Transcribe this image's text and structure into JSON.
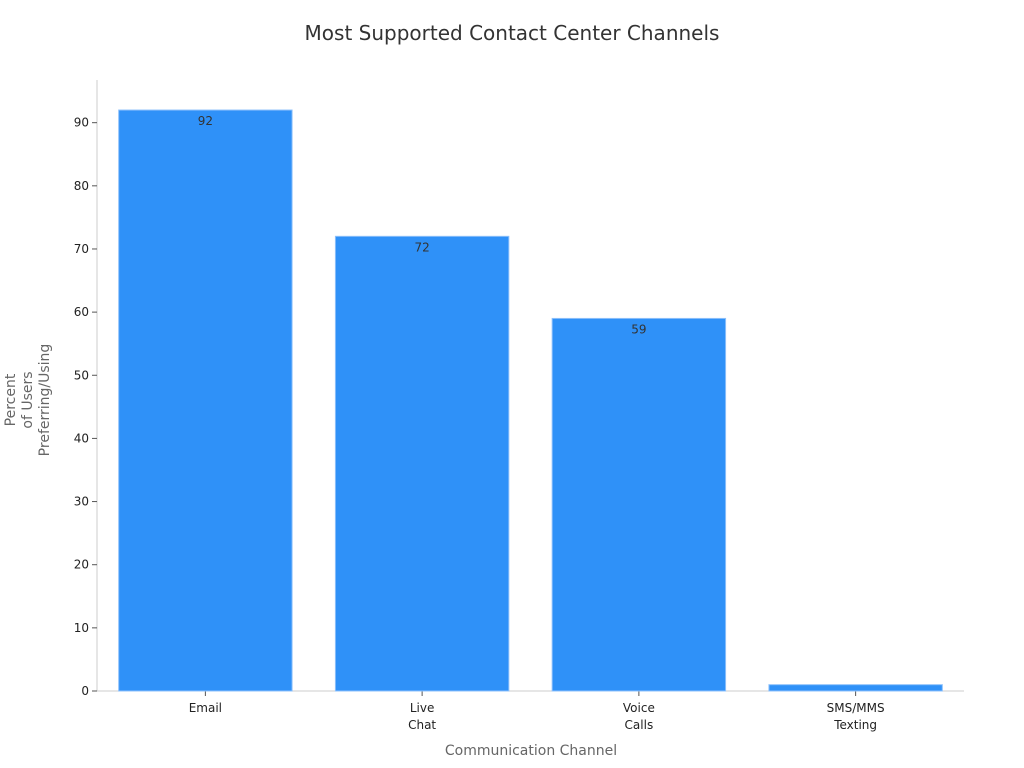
{
  "chart_data": {
    "type": "bar",
    "title": "Most Supported Contact Center Channels",
    "x_label": "Communication Channel",
    "y_label": "Percent\nof Users\nPreferring/Using",
    "categories": [
      "Email",
      "Live\nChat",
      "Voice\nCalls",
      "SMS/MMS\nTexting"
    ],
    "values": [
      92,
      72,
      59,
      1
    ],
    "value_labels": [
      "92",
      "72",
      "59",
      null
    ],
    "color": "#2f91f8",
    "ylim": [
      0,
      96.6
    ],
    "yticks": [
      0,
      10,
      20,
      30,
      40,
      50,
      60,
      70,
      80,
      90
    ],
    "grid": false
  }
}
